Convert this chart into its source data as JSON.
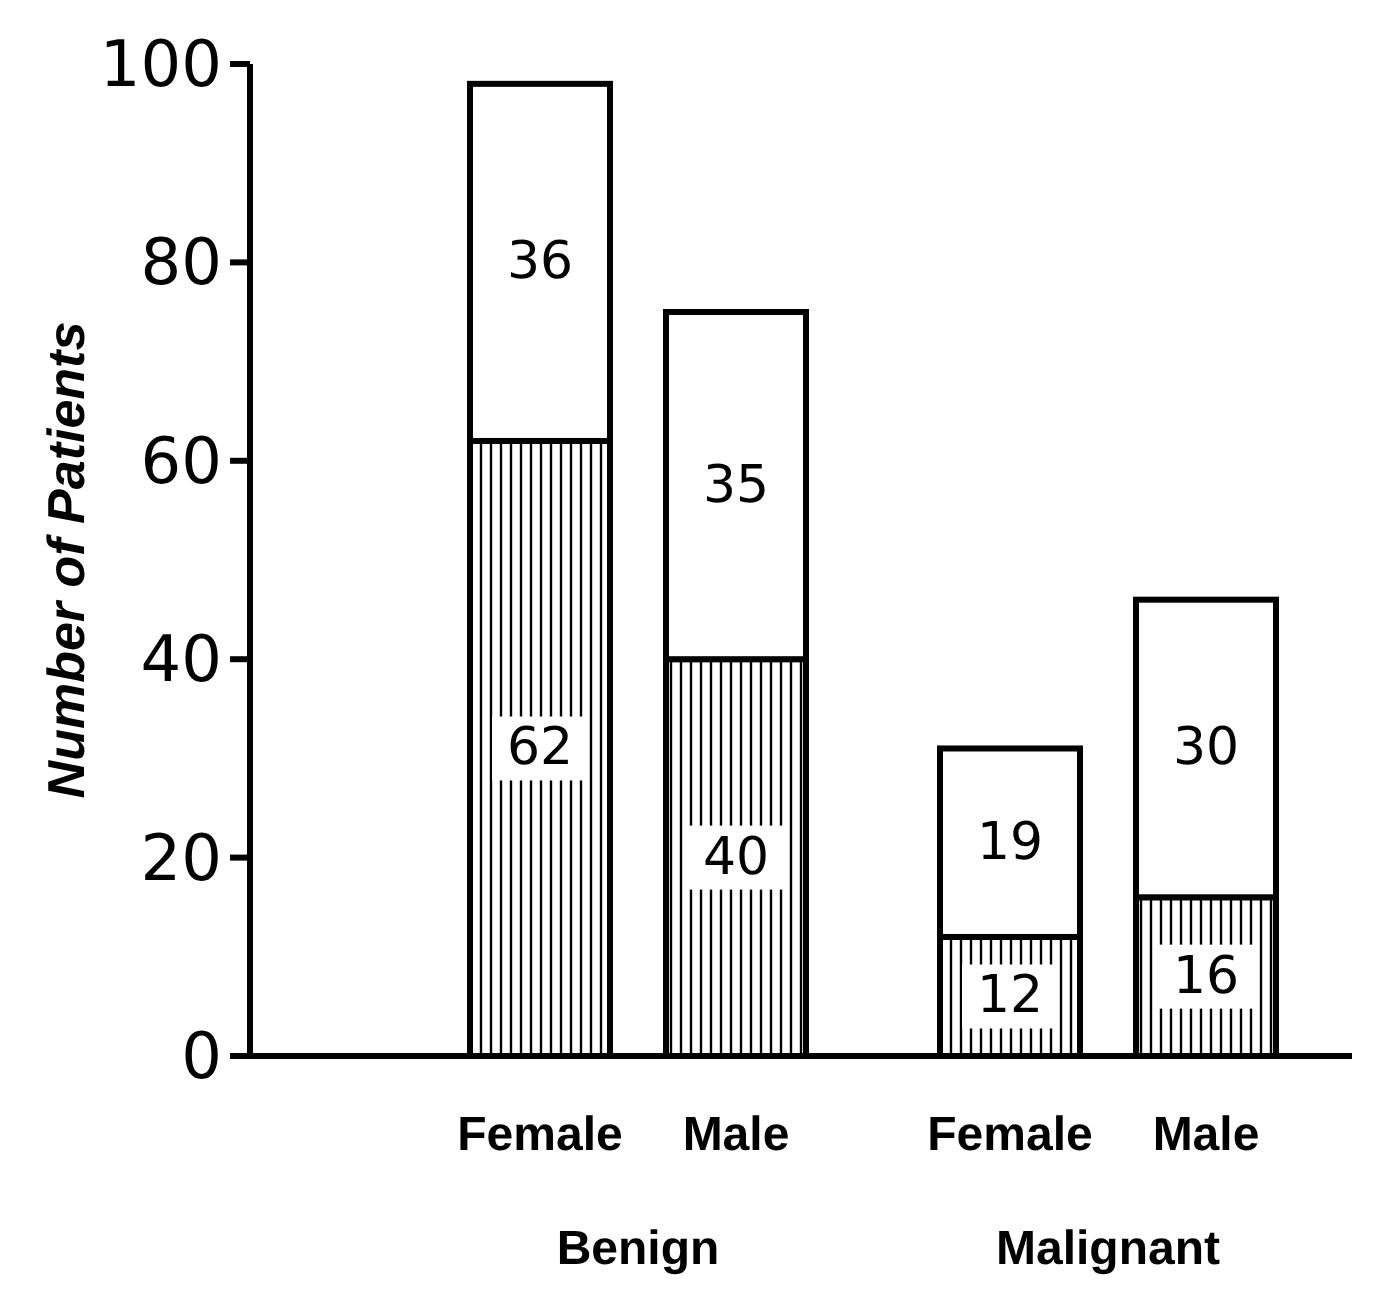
{
  "chart_data": {
    "type": "bar",
    "stacked": true,
    "ylabel": "Number of Patients",
    "categories": [
      "Female",
      "Male",
      "Female",
      "Male"
    ],
    "series": [
      {
        "color": "#000000",
        "values": [
          62,
          40,
          12,
          16
        ]
      },
      {
        "color": "#ffffff",
        "values": [
          36,
          35,
          19,
          30
        ]
      }
    ],
    "ylim": [
      0,
      100
    ],
    "yticks": [
      0,
      20,
      40,
      60,
      80,
      100
    ],
    "data_labels": true,
    "grid": false,
    "annotations": [
      "Benign",
      "Malignant"
    ]
  }
}
